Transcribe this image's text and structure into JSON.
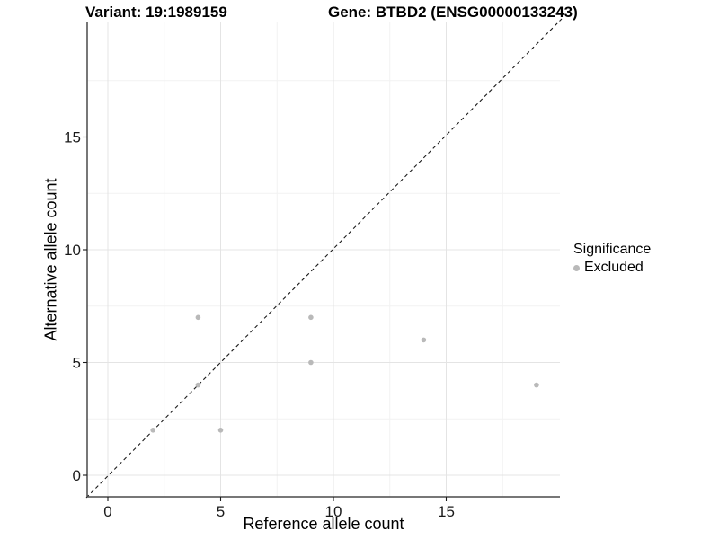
{
  "chart_data": {
    "type": "scatter",
    "title_left": "Variant: 19:1989159",
    "title_right": "Gene: BTBD2 (ENSG00000133243)",
    "xlabel": "Reference allele count",
    "ylabel": "Alternative allele count",
    "xlim": [
      -1,
      20.1
    ],
    "ylim": [
      -1,
      20.1
    ],
    "x_ticks": [
      {
        "value": 0,
        "label": "0"
      },
      {
        "value": 5,
        "label": "5"
      },
      {
        "value": 10,
        "label": "10"
      },
      {
        "value": 15,
        "label": "15"
      }
    ],
    "y_ticks": [
      {
        "value": 0,
        "label": "0"
      },
      {
        "value": 5,
        "label": "5"
      },
      {
        "value": 10,
        "label": "10"
      },
      {
        "value": 15,
        "label": "15"
      }
    ],
    "minor_ticks": [
      2.5,
      7.5,
      12.5,
      17.5
    ],
    "grid": true,
    "identity_line": {
      "type": "dashed",
      "equation": "y = x"
    },
    "series": [
      {
        "name": "Excluded",
        "color": "#b9b9b9",
        "points": [
          [
            2,
            2
          ],
          [
            4,
            4
          ],
          [
            4,
            7
          ],
          [
            5,
            2
          ],
          [
            9,
            5
          ],
          [
            9,
            7
          ],
          [
            14,
            6
          ],
          [
            19,
            4
          ]
        ]
      }
    ],
    "legend": {
      "title": "Significance",
      "position": "right",
      "items": [
        {
          "label": "Excluded",
          "color": "#b9b9b9"
        }
      ]
    },
    "colors": {
      "point": "#b9b9b9",
      "major_grid": "#e4e4e4",
      "minor_grid": "#f2f2f2",
      "axis_line": "#4a4a4a",
      "tick_text": "#1a1a1a",
      "identity_line": "#1a1a1a",
      "background": "#ffffff"
    }
  }
}
